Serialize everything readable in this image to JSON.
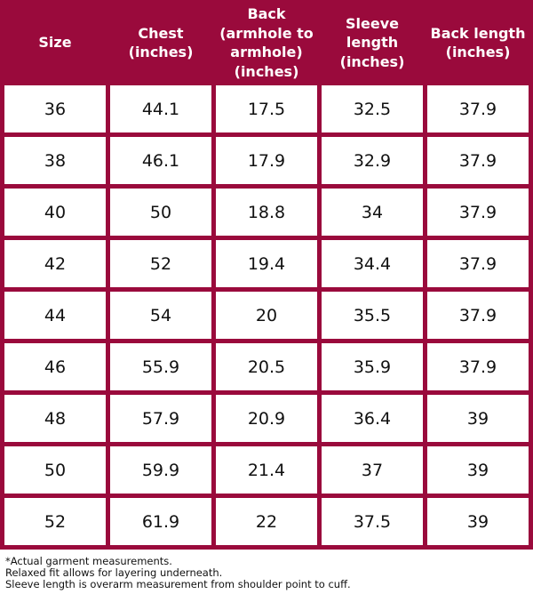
{
  "table": {
    "headers": [
      "Size",
      "Chest (inches)",
      "Back (armhole to armhole) (inches)",
      "Sleeve length (inches)",
      "Back length (inches)"
    ],
    "rows": [
      [
        "36",
        "44.1",
        "17.5",
        "32.5",
        "37.9"
      ],
      [
        "38",
        "46.1",
        "17.9",
        "32.9",
        "37.9"
      ],
      [
        "40",
        "50",
        "18.8",
        "34",
        "37.9"
      ],
      [
        "42",
        "52",
        "19.4",
        "34.4",
        "37.9"
      ],
      [
        "44",
        "54",
        "20",
        "35.5",
        "37.9"
      ],
      [
        "46",
        "55.9",
        "20.5",
        "35.9",
        "37.9"
      ],
      [
        "48",
        "57.9",
        "20.9",
        "36.4",
        "39"
      ],
      [
        "50",
        "59.9",
        "21.4",
        "37",
        "39"
      ],
      [
        "52",
        "61.9",
        "22",
        "37.5",
        "39"
      ]
    ]
  },
  "footnotes": [
    "*Actual garment measurements.",
    "Relaxed fit allows for layering underneath.",
    "Sleeve length is overarm measurement from shoulder point to cuff."
  ],
  "colors": {
    "header_background": "#9a0a3c",
    "header_text": "#ffffff",
    "cell_background": "#ffffff",
    "cell_text": "#111111"
  }
}
